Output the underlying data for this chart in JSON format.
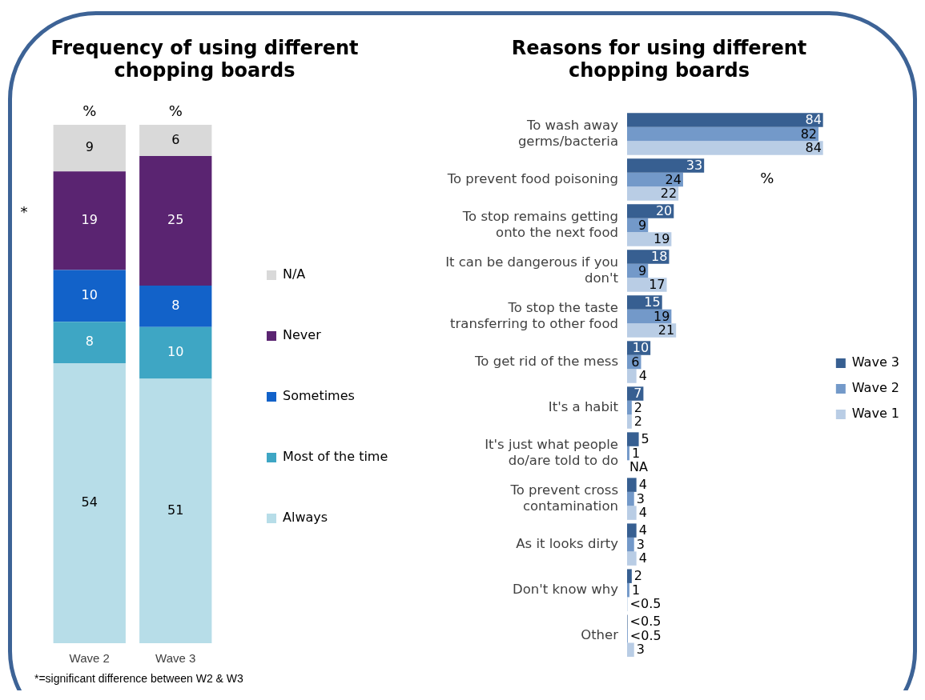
{
  "chart_data": [
    {
      "type": "bar",
      "title": "Frequency of using different chopping boards",
      "categories": [
        "Wave 2",
        "Wave 3"
      ],
      "stacked": true,
      "data_labels": true,
      "legend": "right",
      "tick_labels": "x",
      "series": [
        {
          "name": "Always",
          "color": "#b7dde8",
          "values": [
            54,
            51
          ]
        },
        {
          "name": "Most of the time",
          "color": "#3ea6c4",
          "values": [
            8,
            10
          ]
        },
        {
          "name": "Sometimes",
          "color": "#1262c9",
          "values": [
            10,
            8
          ]
        },
        {
          "name": "Never",
          "color": "#5a2471",
          "values": [
            19,
            25
          ]
        },
        {
          "name": "N/A",
          "color": "#d9d9d9",
          "values": [
            9,
            6
          ]
        }
      ],
      "annotations": [
        "%",
        "%",
        "*",
        "*=significant difference between W2 & W3"
      ]
    },
    {
      "type": "bar",
      "title": "Reasons for using different chopping boards",
      "orientation": "horizontal",
      "legend": "right",
      "tick_labels": "y",
      "categories": [
        "To wash away germs/bacteria",
        "To prevent food poisoning",
        "To stop remains getting onto the next food",
        "It can be dangerous if you don't",
        "To stop the taste transferring to other food",
        "To get rid of the mess",
        "It's a habit",
        "It's just what people do/are told to do",
        "To prevent cross contamination",
        "As it looks dirty",
        "Don't know why",
        "Other"
      ],
      "series": [
        {
          "name": "Wave 3",
          "color": "#375f91",
          "values": [
            84,
            33,
            20,
            18,
            15,
            10,
            7,
            5,
            4,
            4,
            2,
            0.2
          ],
          "value_labels": [
            "84",
            "33",
            "20",
            "18",
            "15",
            "10",
            "7",
            "5",
            "4",
            "4",
            "2",
            "<0.5"
          ]
        },
        {
          "name": "Wave 2",
          "color": "#7399c9",
          "values": [
            82,
            24,
            9,
            9,
            19,
            6,
            2,
            1,
            3,
            3,
            1,
            0.3
          ],
          "value_labels": [
            "82",
            "24",
            "9",
            "9",
            "19",
            "6",
            "2",
            "1",
            "3",
            "3",
            "1",
            "<0.5"
          ]
        },
        {
          "name": "Wave 1",
          "color": "#b9cde5",
          "values": [
            84,
            22,
            19,
            17,
            21,
            4,
            2,
            null,
            4,
            4,
            0.2,
            3
          ],
          "value_labels": [
            "84",
            "22",
            "19",
            "17",
            "21",
            "4",
            "2",
            "NA",
            "4",
            "4",
            "<0.5",
            "3"
          ]
        }
      ],
      "annotations": [
        "%"
      ]
    }
  ]
}
